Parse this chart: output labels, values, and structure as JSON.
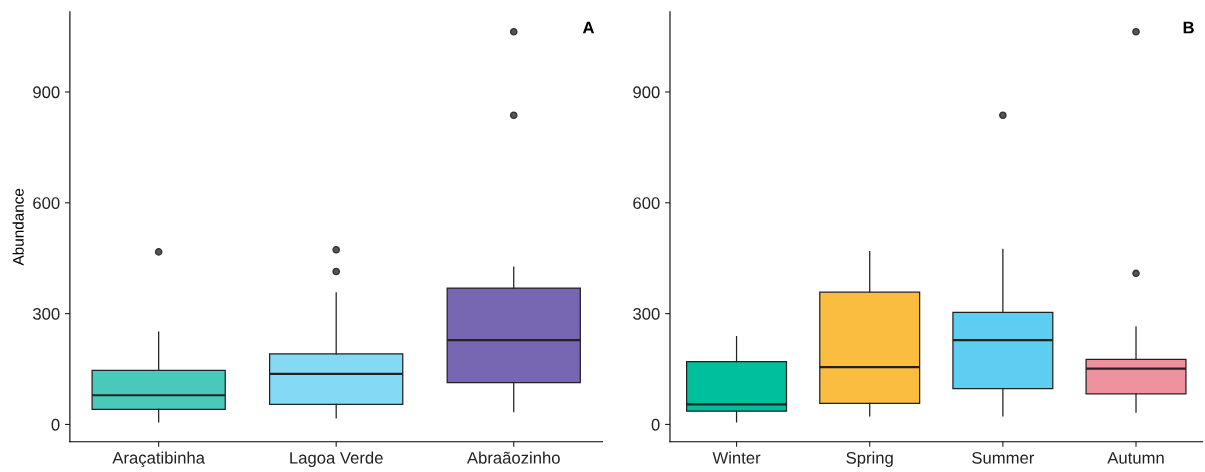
{
  "chart_data": [
    {
      "type": "box",
      "ylabel": "Abundance",
      "categories": [
        "Araçatibinha",
        "Lagoa Verde",
        "Abraãozinho"
      ],
      "colors": [
        "#48c9b9",
        "#84d9f5",
        "#7766b1"
      ],
      "boxes": [
        {
          "low": 7,
          "q1": 41,
          "median": 79,
          "q3": 146,
          "high": 250,
          "outliers": [
            467
          ]
        },
        {
          "low": 18,
          "q1": 54,
          "median": 137,
          "q3": 191,
          "high": 356,
          "outliers": [
            414,
            473
          ]
        },
        {
          "low": 35,
          "q1": 113,
          "median": 228,
          "q3": 369,
          "high": 426,
          "outliers": [
            837,
            1063
          ]
        }
      ],
      "ylim": [
        -47,
        1117
      ],
      "yticks": [
        0,
        300,
        600,
        900
      ],
      "grid": false,
      "annotations": [
        "A"
      ]
    },
    {
      "type": "box",
      "categories": [
        "Winter",
        "Spring",
        "Summer",
        "Autumn"
      ],
      "colors": [
        "#00bf9c",
        "#fbbd40",
        "#5ecdf2",
        "#f0929e"
      ],
      "boxes": [
        {
          "low": 7,
          "q1": 36,
          "median": 54,
          "q3": 170,
          "high": 238
        },
        {
          "low": 23,
          "q1": 57,
          "median": 155,
          "q3": 358,
          "high": 468
        },
        {
          "low": 23,
          "q1": 97,
          "median": 228,
          "q3": 303,
          "high": 474,
          "outliers": [
            837
          ]
        },
        {
          "low": 33,
          "q1": 83,
          "median": 151,
          "q3": 176,
          "high": 264,
          "outliers": [
            409,
            1063
          ]
        }
      ],
      "ylim": [
        -47,
        1117
      ],
      "yticks": [
        0,
        300,
        600,
        900
      ],
      "grid": false,
      "annotations": [
        "B"
      ]
    }
  ]
}
